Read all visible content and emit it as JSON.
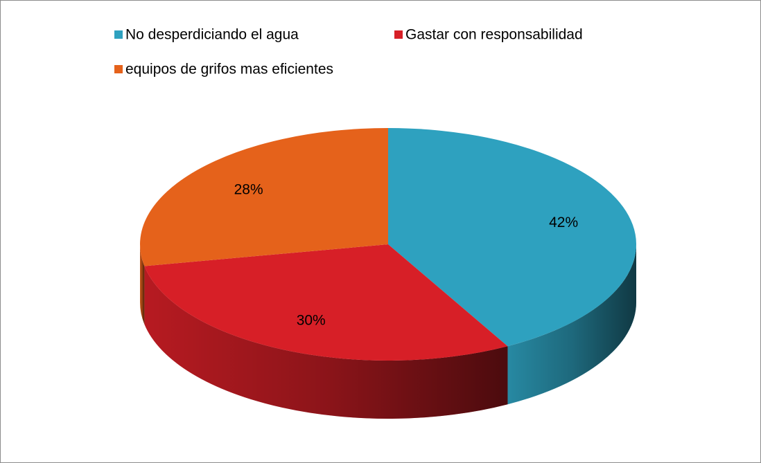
{
  "chart_data": {
    "type": "pie3d",
    "categories": [
      "No desperdiciando el agua",
      "Gastar con responsabilidad",
      "equipos de grifos mas eficientes"
    ],
    "values": [
      42,
      30,
      28
    ],
    "value_labels": [
      "42%",
      "30%",
      "28%"
    ],
    "colors": [
      "#2ea1bf",
      "#d71f27",
      "#e5621b"
    ]
  }
}
